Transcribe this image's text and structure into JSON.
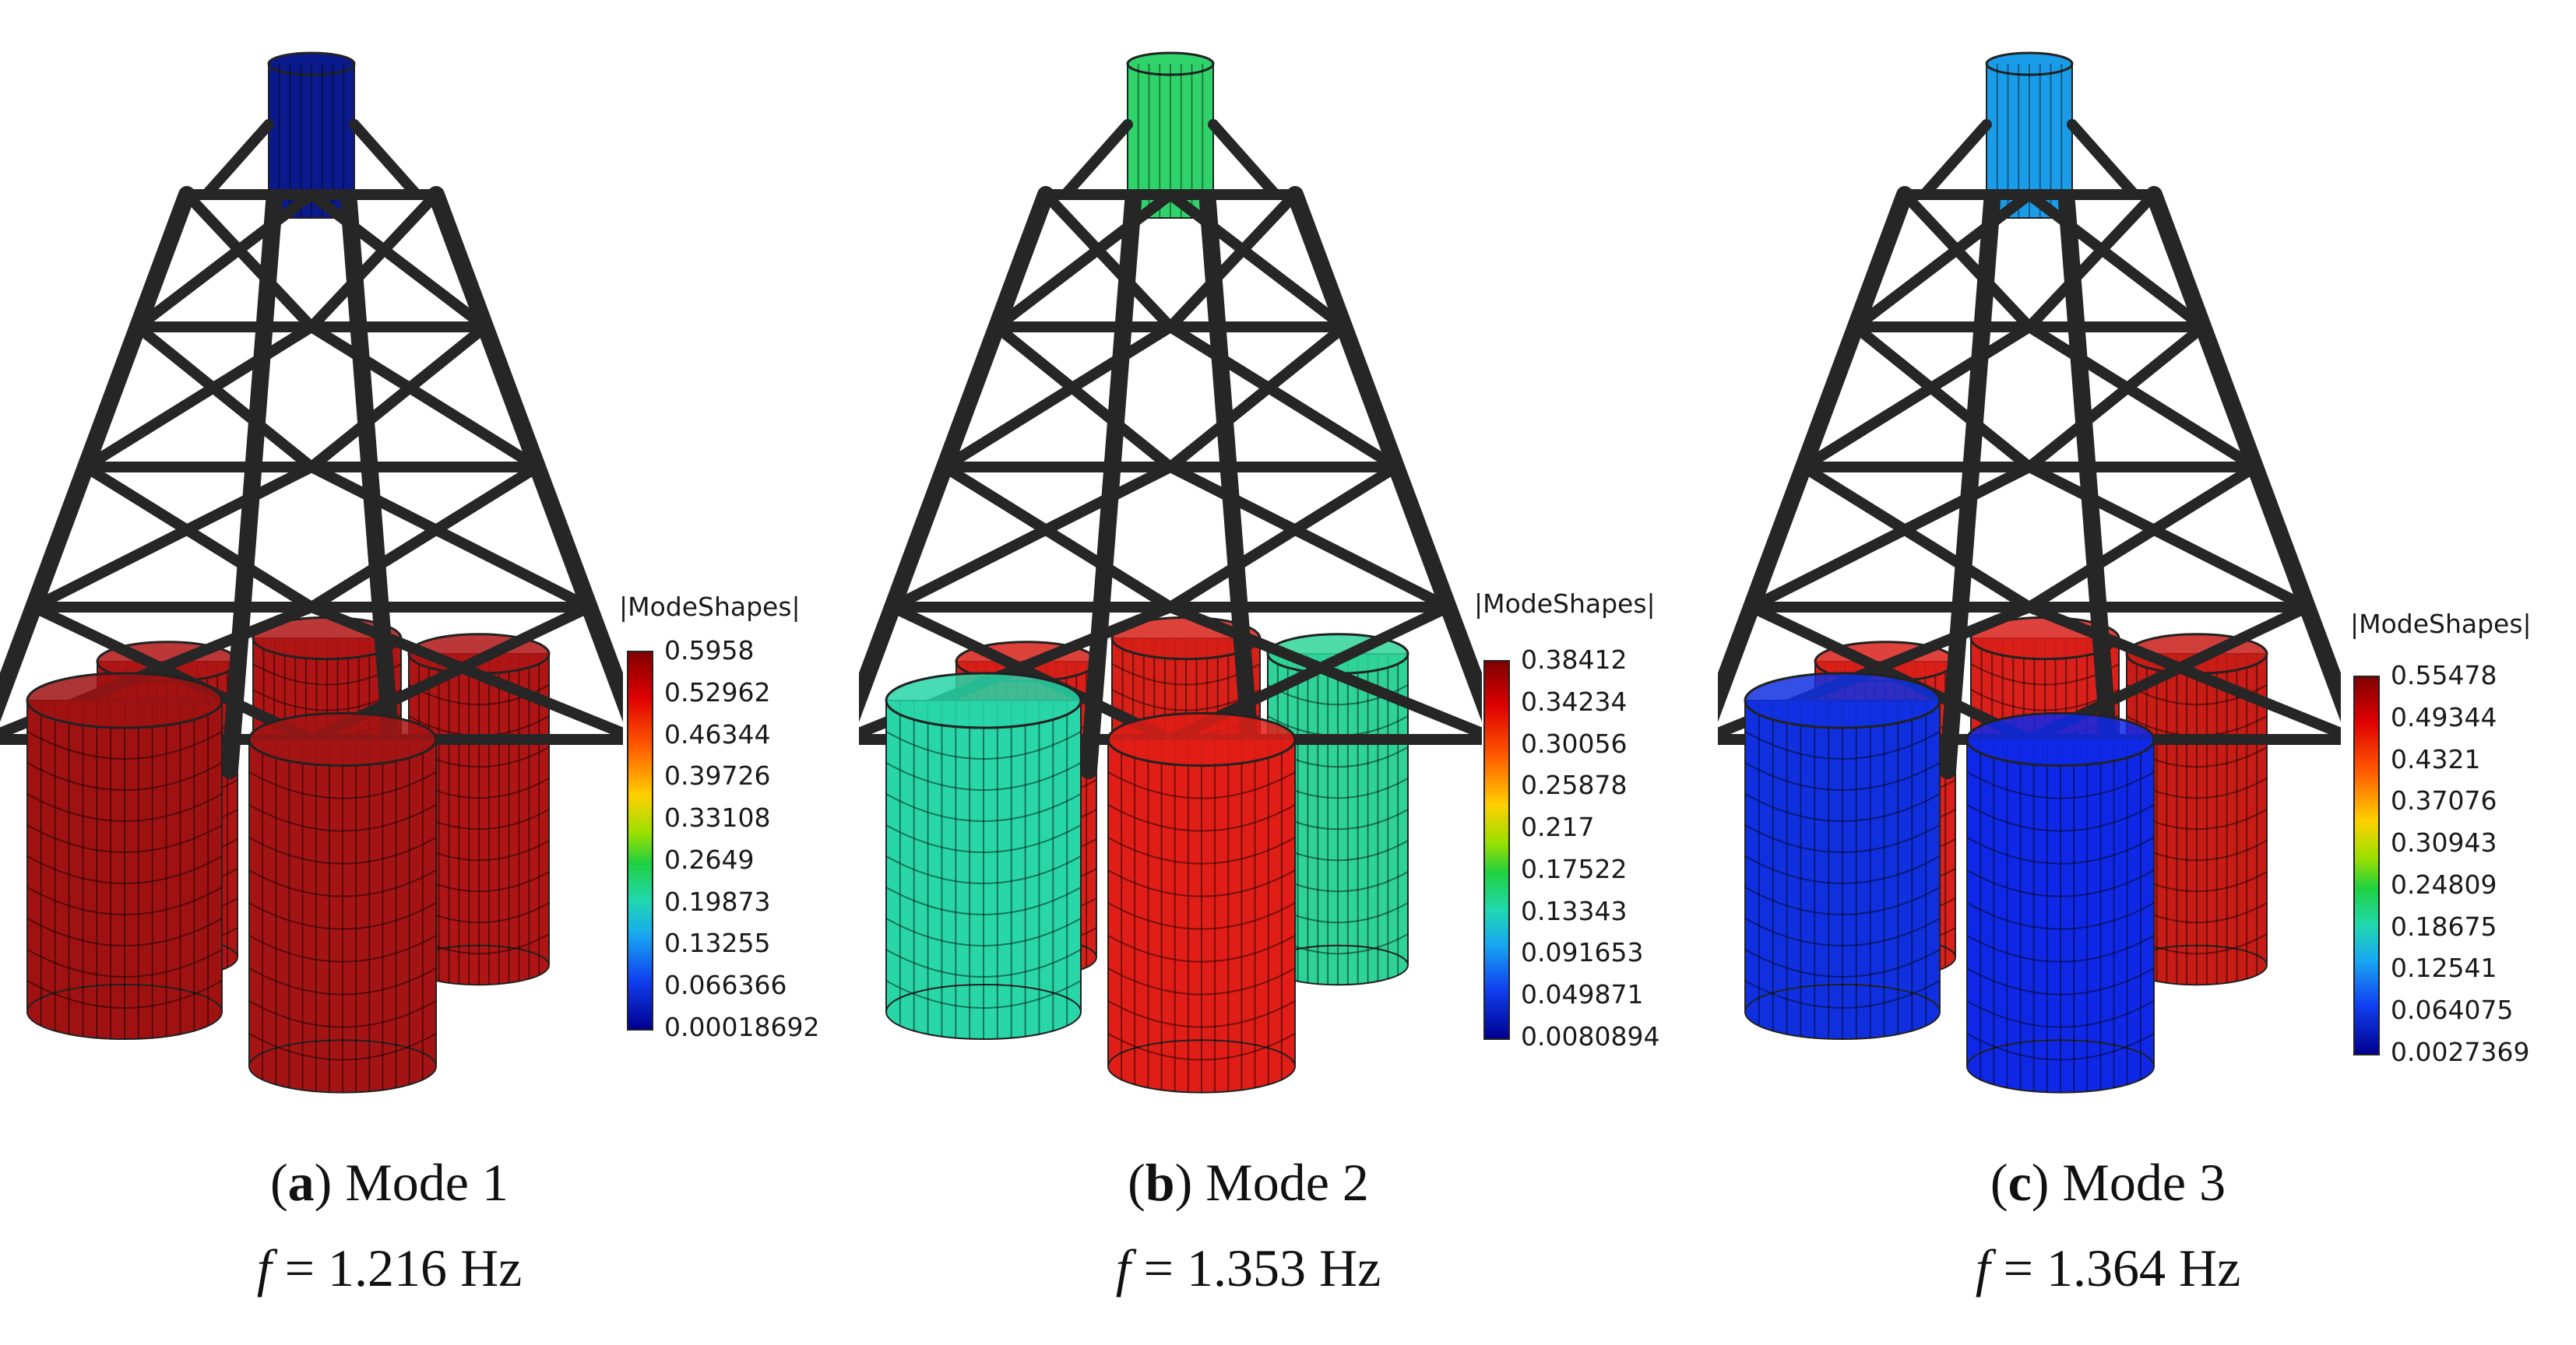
{
  "panels": [
    {
      "label": "a",
      "title": "Mode 1",
      "freq_symbol": "f",
      "freq_text": "= 1.216 Hz",
      "colorbar_title": "|ModeShapes|",
      "ticks": [
        "0.5958",
        "0.52962",
        "0.46344",
        "0.39726",
        "0.33108",
        "0.2649",
        "0.19873",
        "0.13255",
        "0.066366",
        "0.00018692"
      ],
      "colors": {
        "tower_top": "#0a1a8c",
        "cyl_back_left": "#b01515",
        "cyl_back_right": "#b01515",
        "cyl_front_left": "#a01212",
        "cyl_front": "#a51414"
      }
    },
    {
      "label": "b",
      "title": "Mode 2",
      "freq_symbol": "f",
      "freq_text": "= 1.353 Hz",
      "colorbar_title": "|ModeShapes|",
      "ticks": [
        "0.38412",
        "0.34234",
        "0.30056",
        "0.25878",
        "0.217",
        "0.17522",
        "0.13343",
        "0.091653",
        "0.049871",
        "0.0080894"
      ],
      "colors": {
        "tower_top": "#2fd36a",
        "cyl_back_left": "#d62018",
        "cyl_back_right": "#2fd39a",
        "cyl_front_left": "#28d6a8",
        "cyl_front": "#e01d16"
      }
    },
    {
      "label": "c",
      "title": "Mode 3",
      "freq_symbol": "f",
      "freq_text": "= 1.364 Hz",
      "colorbar_title": "|ModeShapes|",
      "ticks": [
        "0.55478",
        "0.49344",
        "0.4321",
        "0.37076",
        "0.30943",
        "0.24809",
        "0.18675",
        "0.12541",
        "0.064075",
        "0.0027369"
      ],
      "colors": {
        "tower_top": "#1a9ce8",
        "cyl_back_left": "#d9201a",
        "cyl_back_right": "#c81c16",
        "cyl_front_left": "#1030e0",
        "cyl_front": "#0f28e8"
      }
    }
  ]
}
